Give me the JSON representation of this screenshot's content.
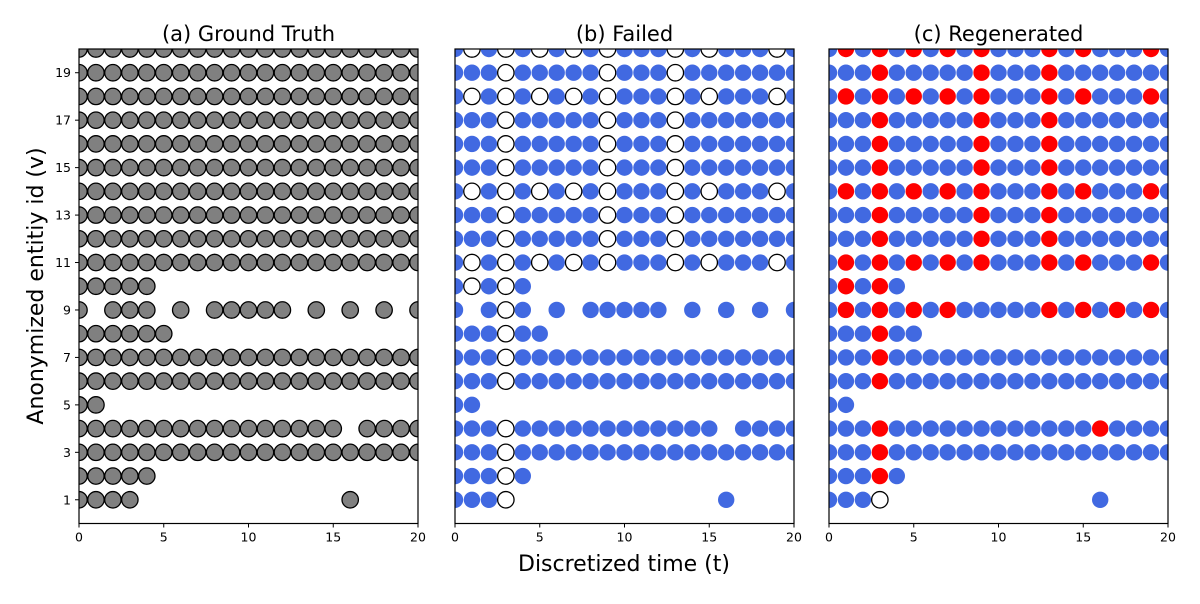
{
  "chart_data": {
    "type": "scatter",
    "xlabel": "Discretized time (t)",
    "ylabel": "Anonymized entitiy id (v)",
    "xlim": [
      0,
      20
    ],
    "ylim": [
      0,
      20
    ],
    "xticks": [
      0,
      5,
      10,
      15,
      20
    ],
    "yticks": [
      1,
      3,
      5,
      7,
      9,
      11,
      13,
      15,
      17,
      19
    ],
    "panels": [
      {
        "title": "(a) Ground Truth",
        "base_color": "#808080",
        "base_edge": "#000000",
        "marked_style": "none",
        "rows": [
          {
            "v": 20,
            "x": "full"
          },
          {
            "v": 19,
            "x": "full"
          },
          {
            "v": 18,
            "x": "full"
          },
          {
            "v": 17,
            "x": "full"
          },
          {
            "v": 16,
            "x": "full"
          },
          {
            "v": 15,
            "x": "full"
          },
          {
            "v": 14,
            "x": "full"
          },
          {
            "v": 13,
            "x": "full"
          },
          {
            "v": 12,
            "x": "full"
          },
          {
            "v": 11,
            "x": "full"
          },
          {
            "v": 10,
            "x": [
              0,
              1,
              2,
              3,
              4
            ]
          },
          {
            "v": 9,
            "x": [
              0,
              2,
              3,
              4,
              6,
              8,
              9,
              10,
              11,
              12,
              14,
              16,
              18,
              20
            ]
          },
          {
            "v": 8,
            "x": [
              0,
              1,
              2,
              3,
              4,
              5
            ]
          },
          {
            "v": 7,
            "x": "full"
          },
          {
            "v": 6,
            "x": "full"
          },
          {
            "v": 5,
            "x": [
              0,
              1
            ]
          },
          {
            "v": 4,
            "x": [
              0,
              1,
              2,
              3,
              4,
              5,
              6,
              7,
              8,
              9,
              10,
              11,
              12,
              13,
              14,
              15,
              17,
              18,
              19,
              20
            ]
          },
          {
            "v": 3,
            "x": "full"
          },
          {
            "v": 2,
            "x": [
              0,
              1,
              2,
              3,
              4
            ]
          },
          {
            "v": 1,
            "x": [
              0,
              1,
              2,
              3,
              16
            ]
          }
        ],
        "marked": [],
        "hollow": []
      },
      {
        "title": "(b) Failed",
        "base_color": "#4169E1",
        "base_edge": "none",
        "rows": [
          {
            "v": 20,
            "x": "full"
          },
          {
            "v": 19,
            "x": "full"
          },
          {
            "v": 18,
            "x": "full"
          },
          {
            "v": 17,
            "x": "full"
          },
          {
            "v": 16,
            "x": "full"
          },
          {
            "v": 15,
            "x": "full"
          },
          {
            "v": 14,
            "x": "full"
          },
          {
            "v": 13,
            "x": "full"
          },
          {
            "v": 12,
            "x": "full"
          },
          {
            "v": 11,
            "x": "full"
          },
          {
            "v": 10,
            "x": [
              0,
              1,
              2,
              3,
              4
            ]
          },
          {
            "v": 9,
            "x": [
              0,
              2,
              3,
              4,
              6,
              8,
              9,
              10,
              11,
              12,
              14,
              16,
              18,
              20
            ]
          },
          {
            "v": 8,
            "x": [
              0,
              1,
              2,
              3,
              4,
              5
            ]
          },
          {
            "v": 7,
            "x": "full"
          },
          {
            "v": 6,
            "x": "full"
          },
          {
            "v": 5,
            "x": [
              0,
              1
            ]
          },
          {
            "v": 4,
            "x": [
              0,
              1,
              2,
              3,
              4,
              5,
              6,
              7,
              8,
              9,
              10,
              11,
              12,
              13,
              14,
              15,
              17,
              18,
              19,
              20
            ]
          },
          {
            "v": 3,
            "x": "full"
          },
          {
            "v": 2,
            "x": [
              0,
              1,
              2,
              3,
              4
            ]
          },
          {
            "v": 1,
            "x": [
              0,
              1,
              2,
              3,
              16
            ]
          }
        ],
        "marked": [],
        "hollow": [
          {
            "v": 20,
            "x": [
              1,
              3,
              5,
              7,
              9,
              13,
              15,
              19
            ]
          },
          {
            "v": 19,
            "x": [
              3,
              9,
              13
            ]
          },
          {
            "v": 18,
            "x": [
              1,
              3,
              5,
              7,
              9,
              13,
              15,
              19
            ]
          },
          {
            "v": 17,
            "x": [
              3,
              9,
              13
            ]
          },
          {
            "v": 16,
            "x": [
              3,
              9,
              13
            ]
          },
          {
            "v": 15,
            "x": [
              3,
              9,
              13
            ]
          },
          {
            "v": 14,
            "x": [
              1,
              3,
              5,
              7,
              9,
              13,
              15,
              19
            ]
          },
          {
            "v": 13,
            "x": [
              3,
              9,
              13
            ]
          },
          {
            "v": 12,
            "x": [
              3,
              9,
              13
            ]
          },
          {
            "v": 11,
            "x": [
              1,
              3,
              5,
              7,
              9,
              13,
              15,
              19
            ]
          },
          {
            "v": 10,
            "x": [
              1,
              3
            ]
          },
          {
            "v": 9,
            "x": [
              3
            ]
          },
          {
            "v": 8,
            "x": [
              3
            ]
          },
          {
            "v": 7,
            "x": [
              3
            ]
          },
          {
            "v": 6,
            "x": [
              3
            ]
          },
          {
            "v": 4,
            "x": [
              3
            ]
          },
          {
            "v": 3,
            "x": [
              3
            ]
          },
          {
            "v": 2,
            "x": [
              3
            ]
          },
          {
            "v": 1,
            "x": [
              3
            ]
          }
        ]
      },
      {
        "title": "(c) Regenerated",
        "base_color": "#4169E1",
        "base_edge": "none",
        "marked_color": "#FF0000",
        "rows": [
          {
            "v": 20,
            "x": "full"
          },
          {
            "v": 19,
            "x": "full"
          },
          {
            "v": 18,
            "x": "full"
          },
          {
            "v": 17,
            "x": "full"
          },
          {
            "v": 16,
            "x": "full"
          },
          {
            "v": 15,
            "x": "full"
          },
          {
            "v": 14,
            "x": "full"
          },
          {
            "v": 13,
            "x": "full"
          },
          {
            "v": 12,
            "x": "full"
          },
          {
            "v": 11,
            "x": "full"
          },
          {
            "v": 10,
            "x": [
              0,
              1,
              2,
              3,
              4
            ]
          },
          {
            "v": 9,
            "x": "full"
          },
          {
            "v": 8,
            "x": [
              0,
              1,
              2,
              3,
              4,
              5
            ]
          },
          {
            "v": 7,
            "x": "full"
          },
          {
            "v": 6,
            "x": "full"
          },
          {
            "v": 5,
            "x": [
              0,
              1
            ]
          },
          {
            "v": 4,
            "x": "full"
          },
          {
            "v": 3,
            "x": "full"
          },
          {
            "v": 2,
            "x": [
              0,
              1,
              2,
              3,
              4
            ]
          },
          {
            "v": 1,
            "x": [
              0,
              1,
              2,
              3,
              16
            ]
          }
        ],
        "marked": [
          {
            "v": 20,
            "x": [
              1,
              3,
              5,
              7,
              9,
              13,
              15,
              19
            ]
          },
          {
            "v": 19,
            "x": [
              3,
              9,
              13
            ]
          },
          {
            "v": 18,
            "x": [
              1,
              3,
              5,
              7,
              9,
              13,
              15,
              19
            ]
          },
          {
            "v": 17,
            "x": [
              3,
              9,
              13
            ]
          },
          {
            "v": 16,
            "x": [
              3,
              9,
              13
            ]
          },
          {
            "v": 15,
            "x": [
              3,
              9,
              13
            ]
          },
          {
            "v": 14,
            "x": [
              1,
              3,
              5,
              7,
              9,
              13,
              15,
              19
            ]
          },
          {
            "v": 13,
            "x": [
              3,
              9,
              13
            ]
          },
          {
            "v": 12,
            "x": [
              3,
              9,
              13
            ]
          },
          {
            "v": 11,
            "x": [
              1,
              3,
              5,
              7,
              9,
              13,
              15,
              19
            ]
          },
          {
            "v": 10,
            "x": [
              1,
              3
            ]
          },
          {
            "v": 9,
            "x": [
              1,
              3,
              5,
              7,
              13,
              15,
              17,
              19
            ]
          },
          {
            "v": 8,
            "x": [
              3
            ]
          },
          {
            "v": 7,
            "x": [
              3
            ]
          },
          {
            "v": 6,
            "x": [
              3
            ]
          },
          {
            "v": 4,
            "x": [
              3,
              16
            ]
          },
          {
            "v": 3,
            "x": [
              3
            ]
          },
          {
            "v": 2,
            "x": [
              3
            ]
          }
        ],
        "hollow": [
          {
            "v": 1,
            "x": [
              3
            ]
          }
        ]
      }
    ]
  }
}
